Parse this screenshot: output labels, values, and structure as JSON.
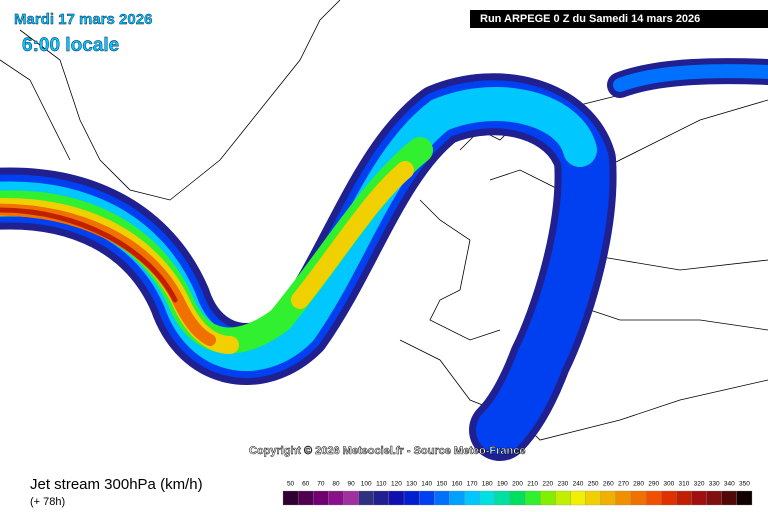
{
  "header": {
    "date": "Mardi 17 mars 2026",
    "time": "6:00 locale",
    "run": "Run ARPEGE 0 Z du Samedi 14 mars 2026"
  },
  "copyright": "Copyright © 2026 Meteociel.fr - Source Meteo-France",
  "footer": {
    "title": "Jet stream 300hPa (km/h)",
    "lead": "(+ 78h)"
  },
  "legend": {
    "values": [
      50,
      60,
      70,
      80,
      90,
      100,
      110,
      120,
      130,
      140,
      150,
      160,
      170,
      180,
      190,
      200,
      210,
      220,
      230,
      240,
      250,
      260,
      270,
      280,
      290,
      300,
      310,
      320,
      330,
      340,
      350
    ],
    "colors": [
      "#300030",
      "#500050",
      "#700070",
      "#8a108a",
      "#a030a0",
      "#303080",
      "#202090",
      "#1010b0",
      "#0020d0",
      "#0040f0",
      "#0070ff",
      "#00a0ff",
      "#00c8ff",
      "#00e0e0",
      "#00e0a0",
      "#00e060",
      "#30f030",
      "#80f000",
      "#c0f000",
      "#f0f000",
      "#f0d000",
      "#f0b000",
      "#f09000",
      "#f07000",
      "#f05000",
      "#e03000",
      "#c02000",
      "#a01010",
      "#801010",
      "#500808",
      "#100000"
    ]
  }
}
